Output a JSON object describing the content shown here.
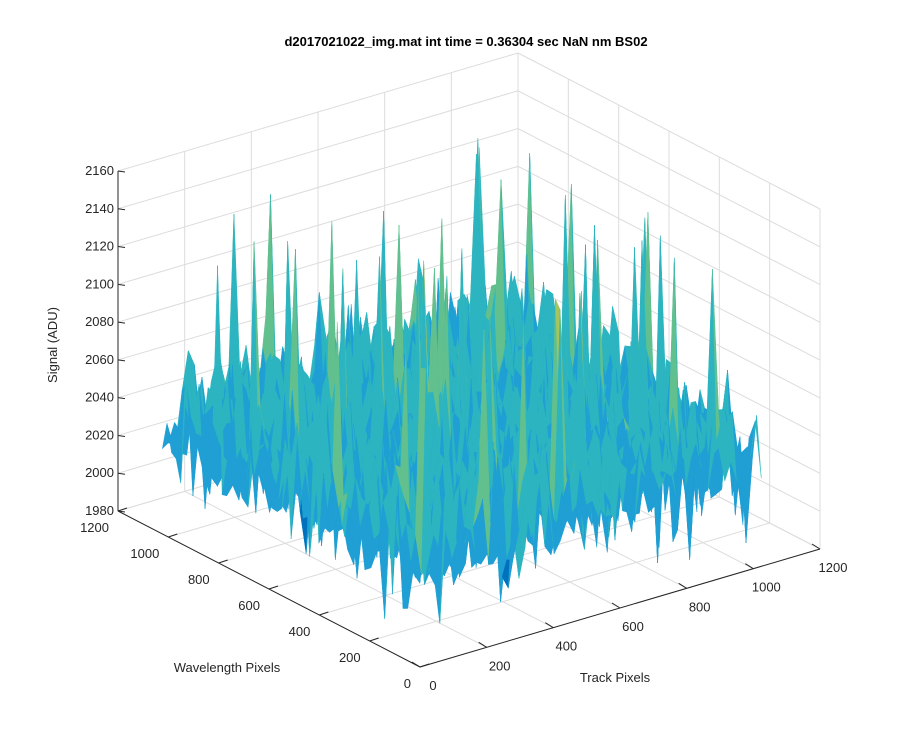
{
  "chart_data": {
    "type": "surface",
    "title": "d2017021022_img.mat int time = 0.36304 sec  NaN nm BS02",
    "xlabel": "Track Pixels",
    "ylabel": "Wavelength Pixels",
    "zlabel": "Signal (ADU)",
    "xlim": [
      0,
      1200
    ],
    "ylim": [
      0,
      1200
    ],
    "zlim": [
      1980,
      2160
    ],
    "x_ticks": [
      "0",
      "200",
      "400",
      "600",
      "800",
      "1000",
      "1200"
    ],
    "y_ticks": [
      "0",
      "200",
      "400",
      "600",
      "800",
      "1000",
      "1200"
    ],
    "z_ticks": [
      "1980",
      "2000",
      "2020",
      "2040",
      "2060",
      "2080",
      "2100",
      "2120",
      "2140",
      "2160"
    ],
    "x_extent": [
      0,
      1024
    ],
    "y_extent": [
      0,
      1024
    ],
    "signal_baseline": 2040,
    "signal_min": 1990,
    "signal_max": 2145,
    "grid": true,
    "colormap": [
      "#0072bd",
      "#1f9fd4",
      "#2cb5c0",
      "#62c08e",
      "#a7c45d",
      "#d8c748"
    ]
  }
}
